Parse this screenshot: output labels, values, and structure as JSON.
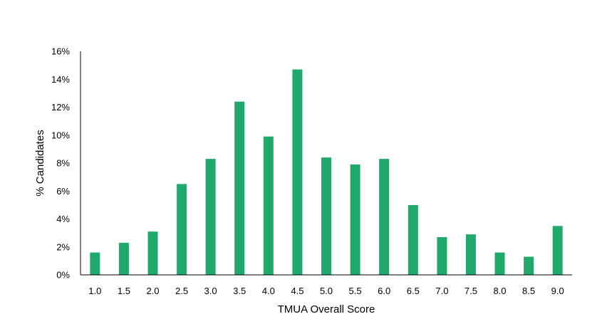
{
  "chart_data": {
    "type": "bar",
    "title": "",
    "xlabel": "TMUA Overall Score",
    "ylabel": "% Candidates",
    "categories": [
      "1.0",
      "1.5",
      "2.0",
      "2.5",
      "3.0",
      "3.5",
      "4.0",
      "4.5",
      "5.0",
      "5.5",
      "6.0",
      "6.5",
      "7.0",
      "7.5",
      "8.0",
      "8.5",
      "9.0"
    ],
    "values": [
      1.6,
      2.3,
      3.1,
      6.5,
      8.3,
      12.4,
      9.9,
      14.7,
      8.4,
      7.9,
      8.3,
      5.0,
      2.7,
      2.9,
      1.6,
      1.3,
      3.5
    ],
    "ylim": [
      0,
      16
    ],
    "yticks": [
      "0%",
      "2%",
      "4%",
      "6%",
      "8%",
      "10%",
      "12%",
      "14%",
      "16%"
    ],
    "ytick_values": [
      0,
      2,
      4,
      6,
      8,
      10,
      12,
      14,
      16
    ],
    "grid": false,
    "legend": "none",
    "bar_color": "#1faa6b",
    "axis_color": "#000000"
  }
}
